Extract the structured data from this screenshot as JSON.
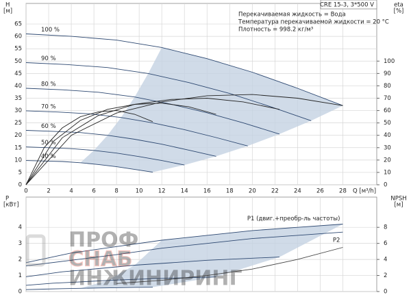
{
  "chart_data": [
    {
      "type": "line",
      "title": "CRE 15-3, 3*500 V",
      "annotations": [
        "Перекачиваемая жидкость = Вода",
        "Температура перекачиваемой жидкости = 20 °C",
        "Плотность = 998.2 кг/м³"
      ],
      "ylabel": "H",
      "yunit": "[м]",
      "y2label": "eta",
      "y2unit": "[%]",
      "xlabel": "Q [м³/h]",
      "xlim": [
        0,
        31
      ],
      "xticks": [
        0,
        2,
        4,
        6,
        8,
        10,
        12,
        14,
        16,
        18,
        20,
        22,
        24,
        26,
        28
      ],
      "ylim": [
        0,
        70
      ],
      "yticks": [
        0,
        5,
        10,
        15,
        20,
        25,
        30,
        35,
        40,
        45,
        50,
        55,
        60,
        65
      ],
      "y2lim": [
        0,
        140
      ],
      "y2ticks": [
        0,
        10,
        20,
        30,
        40,
        50,
        60,
        70,
        80,
        90,
        100
      ],
      "grid": true,
      "region_color": "#c4d2e2",
      "series": [
        {
          "name": "100 %",
          "color": "#2c4770",
          "bounds_region": true,
          "x": [
            0,
            4,
            8,
            12,
            16,
            20,
            24,
            28
          ],
          "values": [
            61,
            60,
            58.5,
            55.5,
            51,
            45.5,
            39,
            32
          ]
        },
        {
          "name": "90 %",
          "color": "#2c4770",
          "bounds_region": true,
          "x": [
            0,
            3.6,
            7.2,
            10.8,
            14.4,
            18,
            21.6,
            25.2
          ],
          "values": [
            49.4,
            48.6,
            47.4,
            45,
            41.3,
            36.9,
            31.6,
            25.9
          ]
        },
        {
          "name": "80 %",
          "color": "#2c4770",
          "bounds_region": true,
          "x": [
            0,
            3.2,
            6.4,
            9.6,
            12.8,
            16,
            19.2,
            22.4
          ],
          "values": [
            39,
            38.4,
            37.4,
            35.5,
            32.6,
            29.1,
            25,
            20.5
          ]
        },
        {
          "name": "70 %",
          "color": "#2c4770",
          "bounds_region": true,
          "x": [
            0,
            2.8,
            5.6,
            8.4,
            11.2,
            14,
            16.8,
            19.6
          ],
          "values": [
            29.9,
            29.4,
            28.7,
            27.2,
            25,
            22.3,
            19.1,
            15.7
          ]
        },
        {
          "name": "60 %",
          "color": "#2c4770",
          "bounds_region": true,
          "x": [
            0,
            2.4,
            4.8,
            7.2,
            9.6,
            12,
            14.4,
            16.8
          ],
          "values": [
            22,
            21.6,
            21.1,
            20,
            18.4,
            16.4,
            14,
            11.5
          ]
        },
        {
          "name": "50 %",
          "color": "#2c4770",
          "bounds_region": true,
          "x": [
            0,
            2,
            4,
            6,
            8,
            10,
            12,
            14
          ],
          "values": [
            15.3,
            15,
            14.6,
            13.9,
            12.8,
            11.4,
            9.8,
            8
          ]
        },
        {
          "name": "40 %",
          "color": "#2c4770",
          "bounds_region": true,
          "x": [
            0,
            1.6,
            3.2,
            4.8,
            6.4,
            8,
            9.6,
            11.2
          ],
          "values": [
            9.8,
            9.6,
            9.4,
            8.9,
            8.2,
            7.3,
            6.2,
            5.1
          ]
        },
        {
          "axis": "y2",
          "color": "#222222",
          "x": [
            0,
            4,
            8,
            12,
            16,
            20,
            24,
            28
          ],
          "values": [
            0,
            40,
            58,
            67,
            72,
            73,
            70,
            64
          ]
        },
        {
          "axis": "y2",
          "color": "#222222",
          "x": [
            0,
            3.2,
            6.4,
            9.6,
            12.8,
            16,
            19.2,
            22.4
          ],
          "values": [
            0,
            38,
            56,
            65,
            69,
            70,
            67,
            61
          ]
        },
        {
          "axis": "y2",
          "color": "#222222",
          "x": [
            0,
            2.4,
            4.8,
            7.2,
            9.6,
            12,
            14.4,
            16.8
          ],
          "values": [
            0,
            35,
            52,
            61,
            65,
            66,
            63,
            57
          ]
        },
        {
          "axis": "y2",
          "color": "#222222",
          "x": [
            0,
            1.6,
            3.2,
            4.8,
            6.4,
            8,
            9.6,
            11.2
          ],
          "values": [
            0,
            30,
            46,
            55,
            59,
            60,
            57,
            51
          ]
        }
      ]
    },
    {
      "type": "line",
      "ylabel": "P",
      "yunit": "[кВт]",
      "y2label": "NPSH",
      "y2unit": "[м]",
      "xlim": [
        0,
        31
      ],
      "ylim": [
        0,
        5.8
      ],
      "yticks": [
        0,
        1,
        2,
        3,
        4
      ],
      "y2lim": [
        0,
        11.6
      ],
      "y2ticks": [
        0,
        2,
        4,
        6,
        8
      ],
      "grid": true,
      "region_color": "#c4d2e2",
      "series": [
        {
          "name": "P1 (двиг.+преобр-ль частоты)",
          "color": "#2c4770",
          "bounds_region": true,
          "x": [
            0,
            4,
            8,
            12,
            16,
            20,
            24,
            28
          ],
          "values": [
            1.8,
            2.4,
            2.8,
            3.2,
            3.5,
            3.8,
            4.0,
            4.2
          ]
        },
        {
          "color": "#2c4770",
          "bounds_region": true,
          "x": [
            0,
            3.2,
            6.4,
            9.6,
            12.8,
            16,
            19.2,
            22.4
          ],
          "values": [
            0.92,
            1.23,
            1.43,
            1.64,
            1.79,
            1.95,
            2.05,
            2.15
          ]
        },
        {
          "color": "#2c4770",
          "bounds_region": true,
          "x": [
            0,
            2.4,
            4.8,
            7.2,
            9.6,
            12,
            14.4,
            16.8
          ],
          "values": [
            0.39,
            0.52,
            0.6,
            0.69,
            0.76,
            0.82,
            0.86,
            0.91
          ]
        },
        {
          "color": "#2c4770",
          "bounds_region": true,
          "x": [
            0,
            1.6,
            3.2,
            4.8,
            6.4,
            8,
            9.6,
            11.2
          ],
          "values": [
            0.12,
            0.15,
            0.18,
            0.2,
            0.22,
            0.24,
            0.26,
            0.27
          ]
        },
        {
          "name": "P2",
          "color": "#2c4770",
          "x": [
            0,
            4,
            8,
            12,
            16,
            20,
            24,
            28
          ],
          "values": [
            1.6,
            1.95,
            2.3,
            2.7,
            3.0,
            3.3,
            3.5,
            3.7
          ]
        },
        {
          "axis": "y2",
          "color": "#444444",
          "x": [
            8,
            12,
            16,
            20,
            24,
            28
          ],
          "values": [
            1.0,
            1.4,
            2.0,
            2.8,
            4.0,
            5.5
          ]
        }
      ]
    }
  ],
  "watermark": {
    "lines": [
      "ПРОФ",
      "СНАБ",
      "ИНЖИНИРИНГ"
    ]
  }
}
